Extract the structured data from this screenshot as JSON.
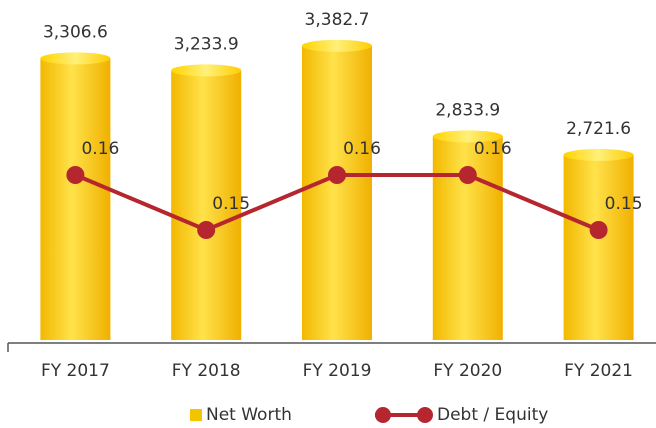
{
  "chart_data": {
    "type": "bar_line",
    "categories": [
      "FY 2017",
      "FY 2018",
      "FY 2019",
      "FY 2020",
      "FY 2021"
    ],
    "series": [
      {
        "name": "Net Worth",
        "color": "#f5c400",
        "values": [
          3306.6,
          3233.9,
          3382.7,
          2833.9,
          2721.6
        ],
        "value_labels": [
          "3,306.6",
          "3,233.9",
          "3,382.7",
          "2,833.9",
          "2,721.6"
        ]
      },
      {
        "name": "Debt / Equity",
        "color": "#b5262e",
        "axis": "y2",
        "values": [
          0.16,
          0.15,
          0.16,
          0.16,
          0.15
        ]
      }
    ],
    "ylim": [
      1600,
      3600
    ],
    "y2lim": [
      0.13,
      0.19
    ]
  }
}
